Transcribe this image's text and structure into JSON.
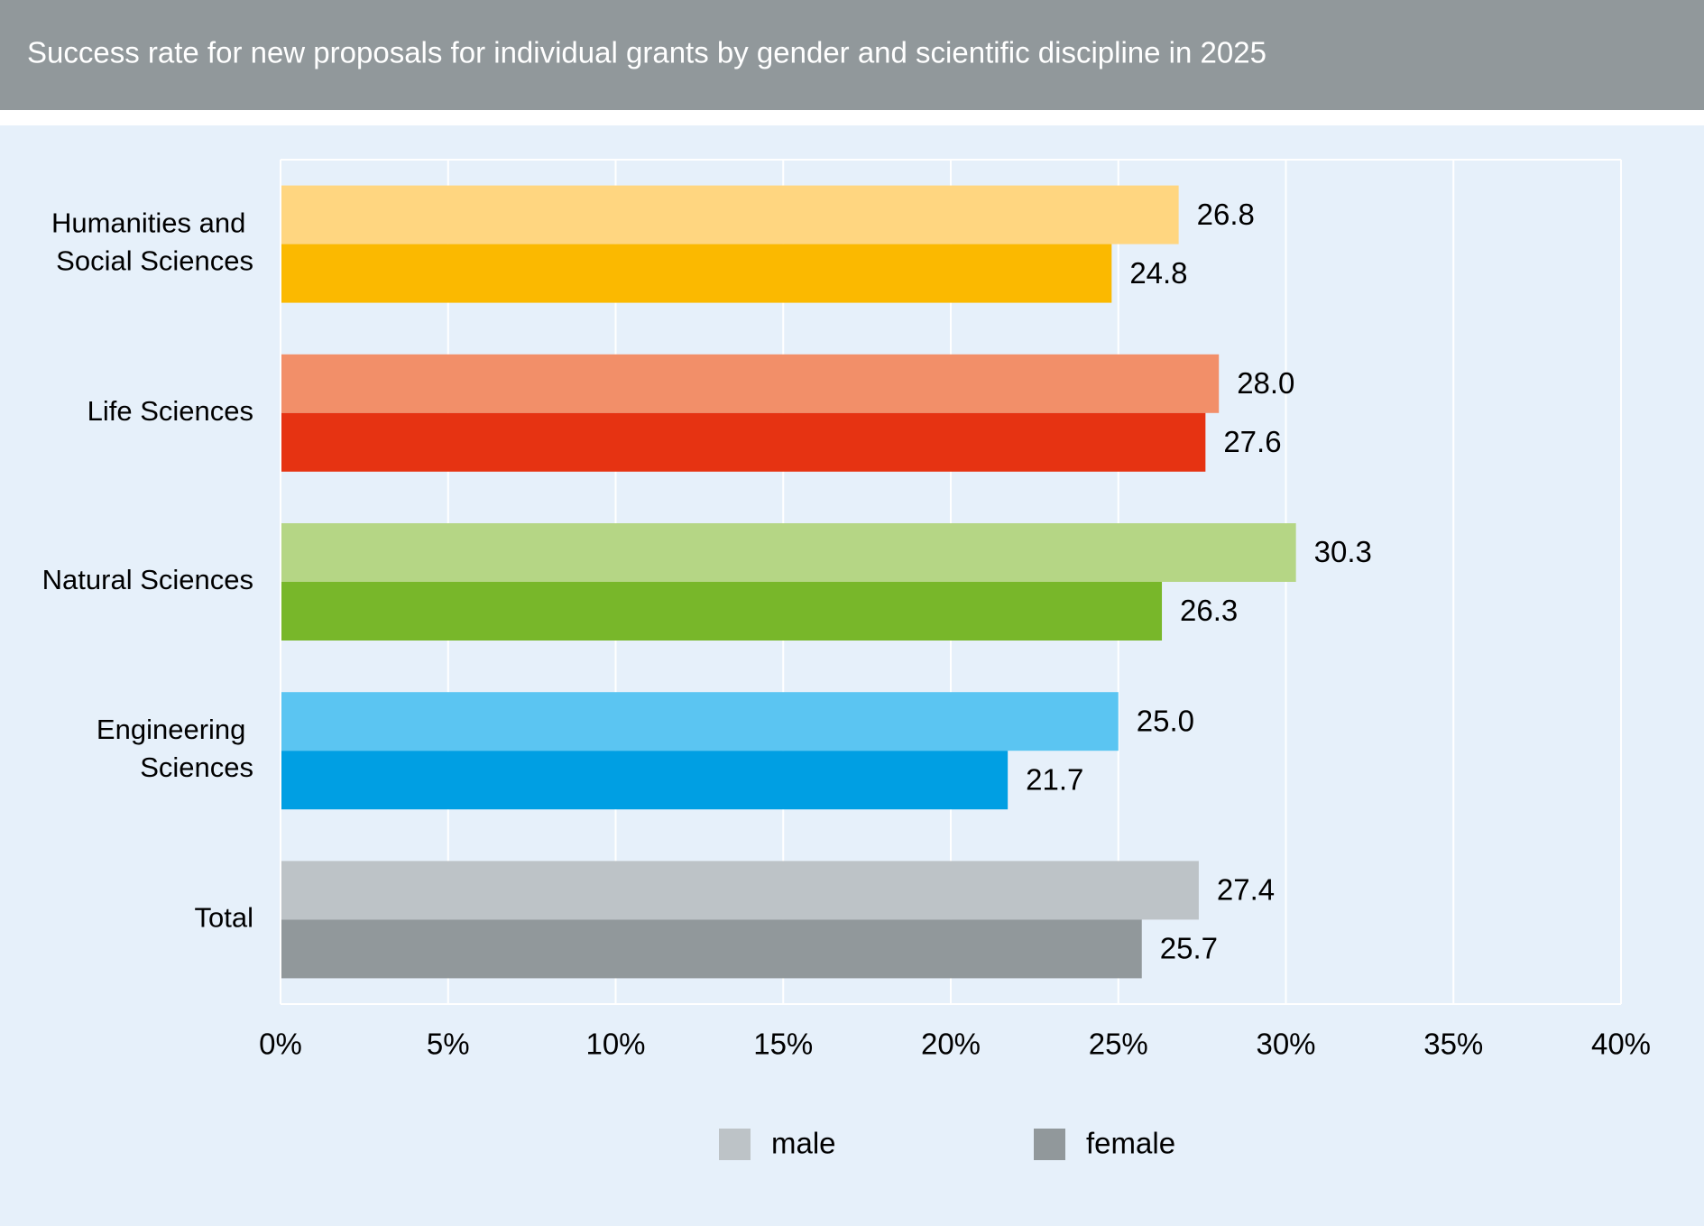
{
  "chart_data": {
    "type": "hbar",
    "title": "Success rate for new proposals for individual grants by gender and scientific discipline in 2025",
    "categories": [
      "Humanities and Social Sciences",
      "Life Sciences",
      "Natural Sciences",
      "Engineering Sciences",
      "Total"
    ],
    "series": [
      {
        "name": "male",
        "color": "#bdc3c7",
        "colors": [
          "#ffd680",
          "#f28f69",
          "#b5d685",
          "#5bc5f2",
          "#bdc3c7"
        ],
        "values": [
          26.8,
          28.0,
          30.3,
          25.0,
          27.4
        ],
        "value_labels": [
          "26.8",
          "28.0",
          "30.3",
          "25.0",
          "27.4"
        ]
      },
      {
        "name": "female",
        "color": "#91989b",
        "colors": [
          "#fbb900",
          "#e63312",
          "#78b72a",
          "#009fe3",
          "#91989b"
        ],
        "values": [
          24.8,
          27.6,
          26.3,
          21.7,
          25.7
        ],
        "value_labels": [
          "24.8",
          "27.6",
          "26.3",
          "21.7",
          "25.7"
        ]
      }
    ],
    "xlim": [
      0,
      40
    ],
    "xticks": [
      {
        "value": 0,
        "label": "0%"
      },
      {
        "value": 5,
        "label": "5%"
      },
      {
        "value": 10,
        "label": "10%"
      },
      {
        "value": 15,
        "label": "15%"
      },
      {
        "value": 20,
        "label": "20%"
      },
      {
        "value": 25,
        "label": "25%"
      },
      {
        "value": 30,
        "label": "30%"
      },
      {
        "value": 35,
        "label": "35%"
      },
      {
        "value": 40,
        "label": "40%"
      }
    ],
    "grid": true,
    "legend": "bottom"
  }
}
